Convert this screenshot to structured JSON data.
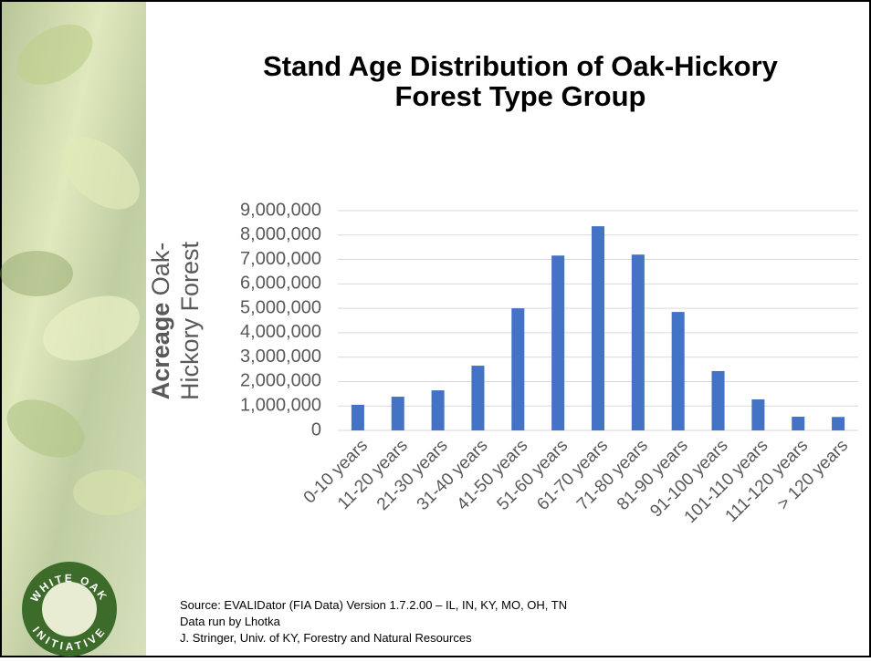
{
  "chart_data": {
    "type": "bar",
    "title": [
      "Stand Age Distribution of Oak-Hickory",
      "Forest Type Group"
    ],
    "ylabel": {
      "bold": "Acreage",
      "line1": "Oak-",
      "line2": "Hickory Forest"
    },
    "categories": [
      "0-10 years",
      "11-20 years",
      "21-30 years",
      "31-40 years",
      "41-50 years",
      "51-60 years",
      "61-70 years",
      "71-80 years",
      "81-90 years",
      "91-100 years",
      "101-110 years",
      "111-120 years",
      "> 120 years"
    ],
    "values": [
      1050000,
      1380000,
      1640000,
      2650000,
      5000000,
      7160000,
      8360000,
      7200000,
      4850000,
      2430000,
      1270000,
      560000,
      550000
    ],
    "color": "#4472c4",
    "ylim": [
      0,
      9000000
    ],
    "yticks": [
      0,
      {
        "value": 1000000,
        "label": "1,000,000"
      },
      {
        "value": 2000000,
        "label": "2,000,000"
      },
      {
        "value": 3000000,
        "label": "3,000,000"
      },
      {
        "value": 4000000,
        "label": "4,000,000"
      },
      {
        "value": 5000000,
        "label": "5,000,000"
      },
      {
        "value": 6000000,
        "label": "6,000,000"
      },
      {
        "value": 7000000,
        "label": "7,000,000"
      },
      {
        "value": 8000000,
        "label": "8,000,000"
      },
      {
        "value": 9000000,
        "label": "9,000,000"
      }
    ],
    "grid": true
  },
  "source": [
    "Source: EVALIDator (FIA Data) Version 1.7.2.00 – IL, IN, KY, MO, OH, TN",
    "Data run by Lhotka",
    "J. Stringer, Univ. of KY, Forestry and Natural Resources"
  ],
  "logo": {
    "top": "WHITE OAK",
    "bottom": "INITIATIVE"
  }
}
